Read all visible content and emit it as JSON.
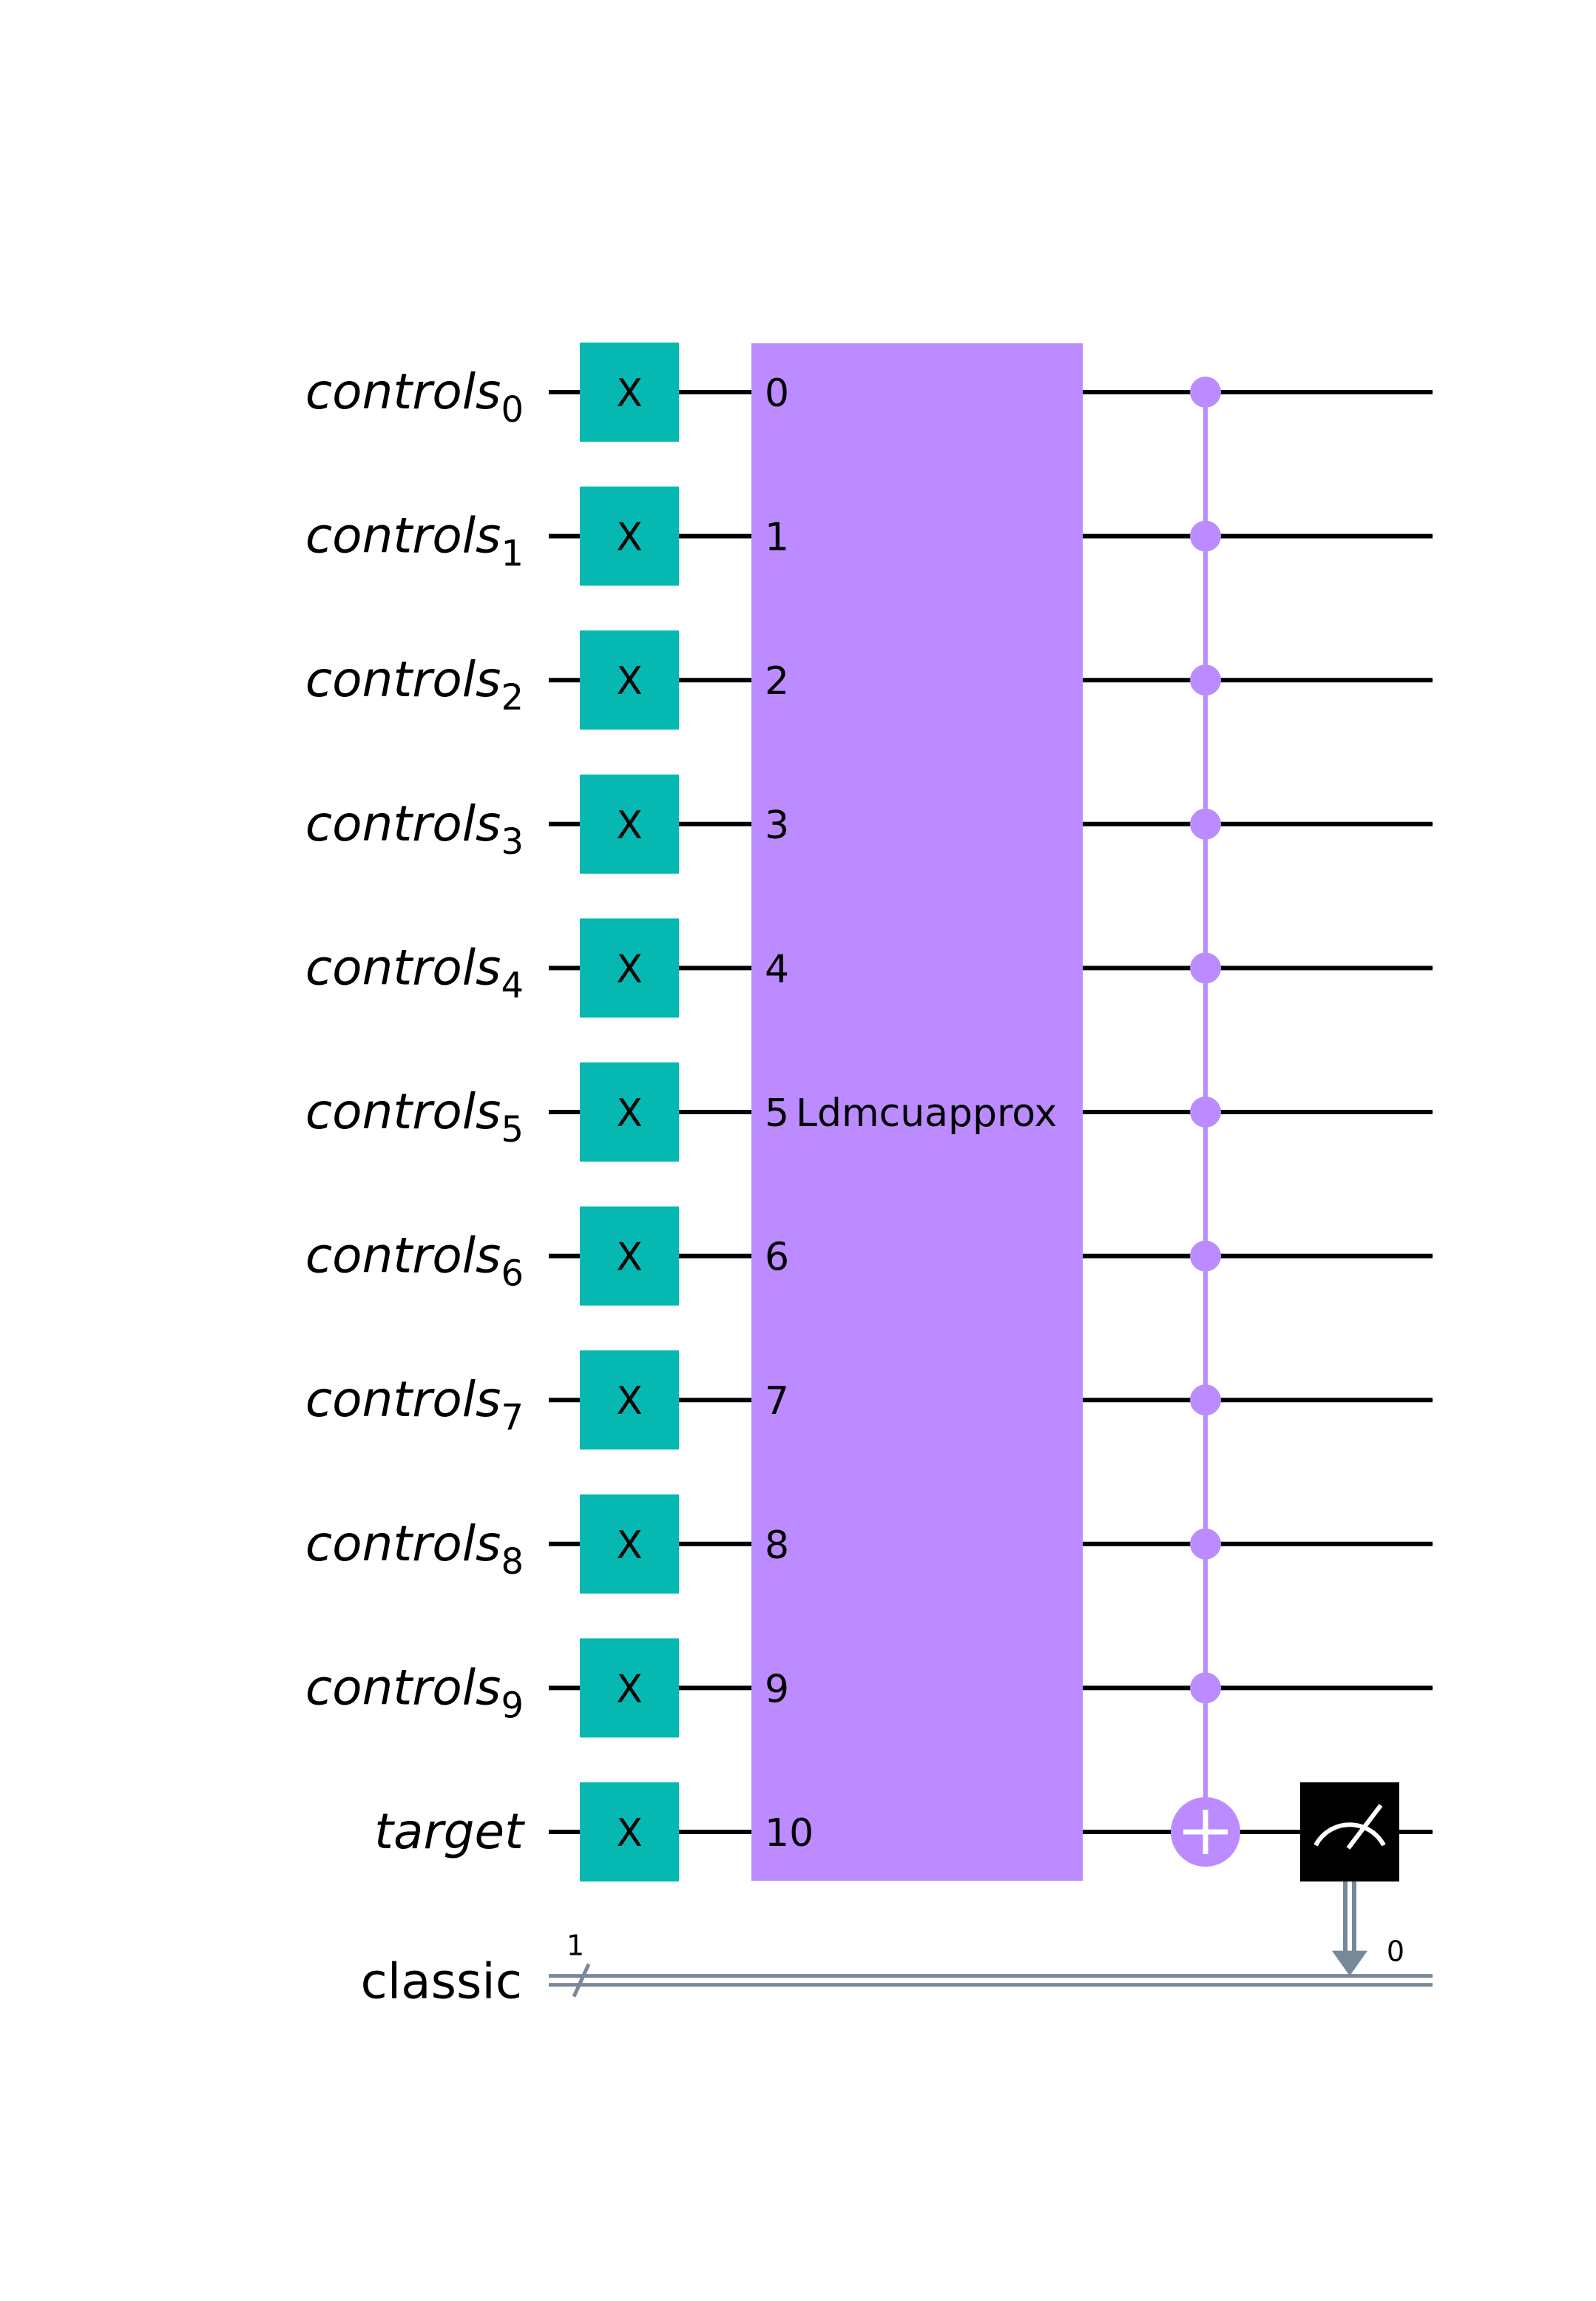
{
  "circuit": {
    "qubits": [
      {
        "label": "controls",
        "index": "0"
      },
      {
        "label": "controls",
        "index": "1"
      },
      {
        "label": "controls",
        "index": "2"
      },
      {
        "label": "controls",
        "index": "3"
      },
      {
        "label": "controls",
        "index": "4"
      },
      {
        "label": "controls",
        "index": "5"
      },
      {
        "label": "controls",
        "index": "6"
      },
      {
        "label": "controls",
        "index": "7"
      },
      {
        "label": "controls",
        "index": "8"
      },
      {
        "label": "controls",
        "index": "9"
      },
      {
        "label": "target",
        "index": ""
      }
    ],
    "classical_register": {
      "label": "classic",
      "width": "1",
      "bit_index": "0"
    },
    "x_gate_label": "X",
    "block": {
      "name": "Ldmcuapprox",
      "pins": [
        "0",
        "1",
        "2",
        "3",
        "4",
        "5",
        "6",
        "7",
        "8",
        "9",
        "10"
      ]
    },
    "colors": {
      "x_gate": "#06b8b2",
      "block": "#bb8bff",
      "control": "#bb8bff",
      "measure": "#000000",
      "classical_wire": "#778899",
      "wire": "#000000"
    }
  }
}
